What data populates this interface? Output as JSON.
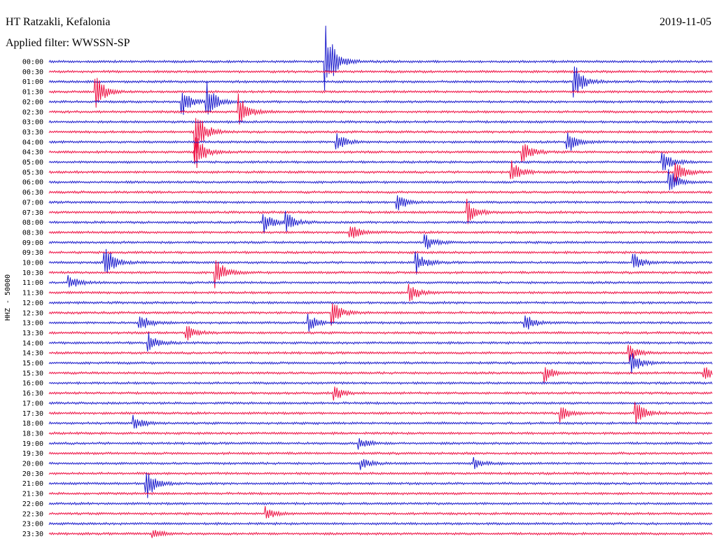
{
  "header": {
    "station": "HT Ratzakli, Kefalonia",
    "date": "2019-11-05",
    "filter": "Applied filter: WWSSN-SP"
  },
  "chart_data": {
    "type": "helicorder",
    "channel_label": "HHZ - 50000",
    "row_labels": [
      "00:00",
      "00:30",
      "01:00",
      "01:30",
      "02:00",
      "02:30",
      "03:00",
      "03:30",
      "04:00",
      "04:30",
      "05:00",
      "05:30",
      "06:00",
      "06:30",
      "07:00",
      "07:30",
      "08:00",
      "08:30",
      "09:00",
      "09:30",
      "10:00",
      "10:30",
      "11:00",
      "11:30",
      "12:00",
      "12:30",
      "13:00",
      "13:30",
      "14:00",
      "14:30",
      "15:00",
      "15:30",
      "16:00",
      "16:30",
      "17:00",
      "17:30",
      "18:00",
      "18:30",
      "19:00",
      "19:30",
      "20:00",
      "20:30",
      "21:00",
      "21:30",
      "22:00",
      "22:30",
      "23:00",
      "23:30"
    ],
    "trace_colors": [
      "#1c1ccc",
      "#ee1144"
    ],
    "events": [
      {
        "row": 0,
        "minute": 12.5,
        "amp": 8.0
      },
      {
        "row": 2,
        "minute": 23.7,
        "amp": 4.2
      },
      {
        "row": 3,
        "minute": 2.1,
        "amp": 3.5
      },
      {
        "row": 4,
        "minute": 6.0,
        "amp": 3.0
      },
      {
        "row": 4,
        "minute": 7.1,
        "amp": 4.0
      },
      {
        "row": 5,
        "minute": 8.6,
        "amp": 3.8
      },
      {
        "row": 7,
        "minute": 6.6,
        "amp": 5.5
      },
      {
        "row": 8,
        "minute": 13.0,
        "amp": 2.0
      },
      {
        "row": 8,
        "minute": 23.4,
        "amp": 2.8
      },
      {
        "row": 9,
        "minute": 6.6,
        "amp": 4.0
      },
      {
        "row": 9,
        "minute": 21.4,
        "amp": 2.4
      },
      {
        "row": 10,
        "minute": 27.7,
        "amp": 2.5
      },
      {
        "row": 11,
        "minute": 20.9,
        "amp": 2.3
      },
      {
        "row": 11,
        "minute": 28.3,
        "amp": 2.6
      },
      {
        "row": 12,
        "minute": 28.0,
        "amp": 3.0
      },
      {
        "row": 14,
        "minute": 15.7,
        "amp": 2.2
      },
      {
        "row": 15,
        "minute": 18.9,
        "amp": 2.6
      },
      {
        "row": 16,
        "minute": 9.7,
        "amp": 2.4
      },
      {
        "row": 16,
        "minute": 10.7,
        "amp": 2.0
      },
      {
        "row": 17,
        "minute": 13.6,
        "amp": 1.8
      },
      {
        "row": 18,
        "minute": 17.0,
        "amp": 1.6
      },
      {
        "row": 20,
        "minute": 2.5,
        "amp": 4.0
      },
      {
        "row": 20,
        "minute": 16.6,
        "amp": 2.2
      },
      {
        "row": 20,
        "minute": 26.4,
        "amp": 2.0
      },
      {
        "row": 21,
        "minute": 7.5,
        "amp": 3.4
      },
      {
        "row": 22,
        "minute": 0.9,
        "amp": 1.6
      },
      {
        "row": 23,
        "minute": 16.3,
        "amp": 2.0
      },
      {
        "row": 25,
        "minute": 12.8,
        "amp": 2.4
      },
      {
        "row": 26,
        "minute": 4.1,
        "amp": 2.0
      },
      {
        "row": 26,
        "minute": 11.7,
        "amp": 1.8
      },
      {
        "row": 26,
        "minute": 21.5,
        "amp": 1.8
      },
      {
        "row": 27,
        "minute": 6.2,
        "amp": 1.7
      },
      {
        "row": 28,
        "minute": 4.5,
        "amp": 1.9
      },
      {
        "row": 29,
        "minute": 26.2,
        "amp": 2.0
      },
      {
        "row": 30,
        "minute": 26.3,
        "amp": 2.4
      },
      {
        "row": 31,
        "minute": 22.4,
        "amp": 1.8
      },
      {
        "row": 31,
        "minute": 29.6,
        "amp": 1.6
      },
      {
        "row": 33,
        "minute": 12.9,
        "amp": 1.5
      },
      {
        "row": 35,
        "minute": 23.1,
        "amp": 1.8
      },
      {
        "row": 35,
        "minute": 26.5,
        "amp": 3.0
      },
      {
        "row": 36,
        "minute": 3.8,
        "amp": 1.8
      },
      {
        "row": 38,
        "minute": 14.0,
        "amp": 1.3
      },
      {
        "row": 40,
        "minute": 14.1,
        "amp": 1.1
      },
      {
        "row": 40,
        "minute": 19.2,
        "amp": 1.1
      },
      {
        "row": 42,
        "minute": 4.4,
        "amp": 3.2
      },
      {
        "row": 45,
        "minute": 9.8,
        "amp": 1.3
      },
      {
        "row": 47,
        "minute": 4.7,
        "amp": 1.0
      }
    ]
  }
}
